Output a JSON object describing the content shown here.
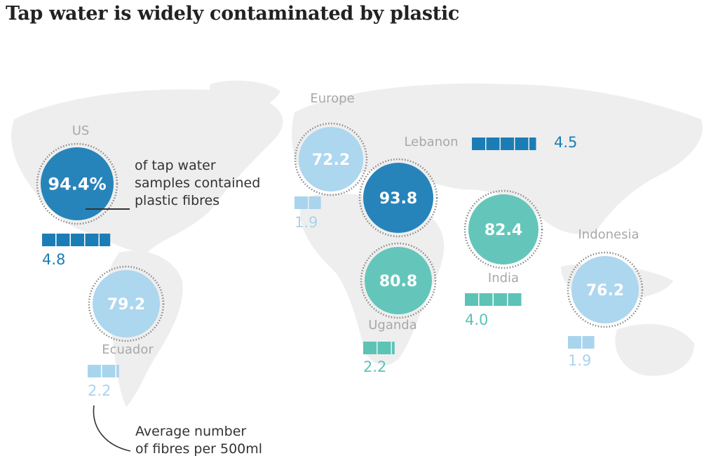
{
  "title": "Tap water is widely contaminated by plastic",
  "colors": {
    "dark_blue": "#1b7db6",
    "light_blue": "#a9d4ee",
    "teal": "#5cc3b6",
    "land": "#eeeeee",
    "label_gray": "#a8a8a8"
  },
  "annotation_percent": "of tap water samples contained plastic fibres",
  "annotation_percent_lines": [
    "of tap water",
    "samples contained",
    "plastic fibres"
  ],
  "annotation_fibres_lines": [
    "Average number",
    "of fibres per 500ml"
  ],
  "chart_data": {
    "type": "proportional-symbol-map",
    "title": "Tap water is widely contaminated by plastic",
    "measures": [
      "% of tap water samples containing plastic fibres",
      "Average number of fibres per 500ml"
    ],
    "regions": [
      {
        "name": "US",
        "percent": 94.4,
        "percent_label": "94.4%",
        "fibres": 4.8,
        "fibres_label": "4.8",
        "color": "dark_blue"
      },
      {
        "name": "Europe",
        "percent": 72.2,
        "percent_label": "72.2",
        "fibres": 1.9,
        "fibres_label": "1.9",
        "color": "light_blue"
      },
      {
        "name": "Lebanon",
        "percent": 93.8,
        "percent_label": "93.8",
        "fibres": 4.5,
        "fibres_label": "4.5",
        "color": "dark_blue"
      },
      {
        "name": "India",
        "percent": 82.4,
        "percent_label": "82.4",
        "fibres": 4.0,
        "fibres_label": "4.0",
        "color": "teal"
      },
      {
        "name": "Uganda",
        "percent": 80.8,
        "percent_label": "80.8",
        "fibres": 2.2,
        "fibres_label": "2.2",
        "color": "teal"
      },
      {
        "name": "Indonesia",
        "percent": 76.2,
        "percent_label": "76.2",
        "fibres": 1.9,
        "fibres_label": "1.9",
        "color": "light_blue"
      },
      {
        "name": "Ecuador",
        "percent": 79.2,
        "percent_label": "79.2",
        "fibres": 2.2,
        "fibres_label": "2.2",
        "color": "light_blue"
      }
    ]
  }
}
